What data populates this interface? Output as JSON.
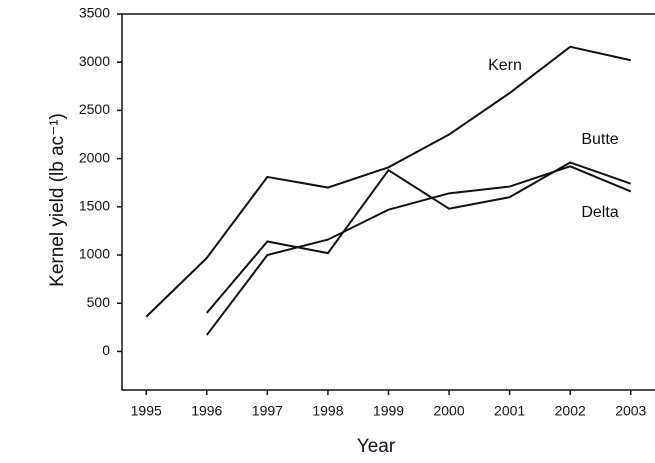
{
  "chart_data": {
    "type": "line",
    "xlabel": "Year",
    "ylabel": "Kernel yield (lb ac⁻¹)",
    "x": [
      1995,
      1996,
      1997,
      1998,
      1999,
      2000,
      2001,
      2002,
      2003
    ],
    "xlim": [
      1994.6,
      2003.4
    ],
    "xticks": [
      1995,
      1996,
      1997,
      1998,
      1999,
      2000,
      2001,
      2002,
      2003
    ],
    "ylim": [
      -400,
      3500
    ],
    "yticks": [
      0,
      500,
      1000,
      1500,
      2000,
      2500,
      3000,
      3500
    ],
    "grid": false,
    "series": [
      {
        "name": "Kern",
        "color": "#111111",
        "values": [
          360,
          970,
          1810,
          1700,
          1910,
          2250,
          2680,
          3160,
          3020
        ]
      },
      {
        "name": "Butte",
        "color": "#111111",
        "values": [
          null,
          400,
          1140,
          1020,
          1880,
          1480,
          1600,
          1960,
          1740
        ]
      },
      {
        "name": "Delta",
        "color": "#111111",
        "values": [
          null,
          170,
          1000,
          1160,
          1470,
          1640,
          1710,
          1920,
          1660
        ]
      }
    ]
  }
}
